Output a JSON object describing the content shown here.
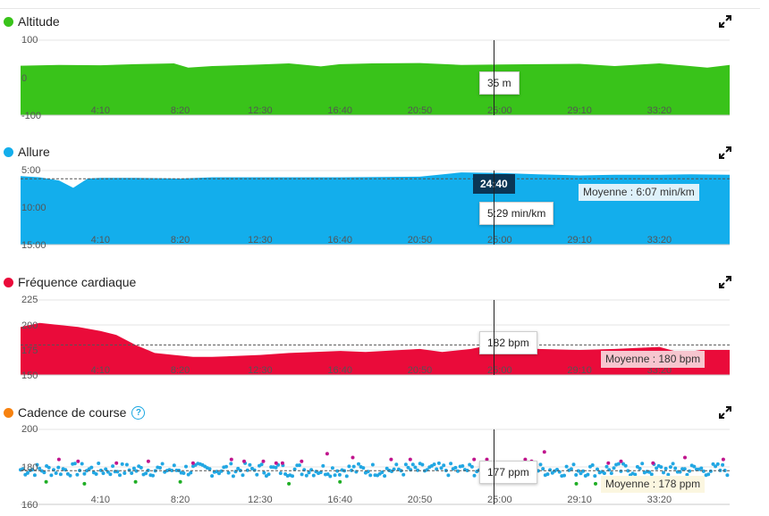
{
  "colors": {
    "altitude": "#39c31a",
    "pace": "#13aeec",
    "heart": "#ea0b3a",
    "cadence_dot": "#f7820f",
    "cad_blue": "#22a7e3",
    "cad_purple": "#c0158d",
    "cad_green": "#1fae25"
  },
  "icons": {
    "expand": "expand-arrows-icon",
    "help": "question-circle-icon"
  },
  "cursor": {
    "time_label": "24:40",
    "x_time_seconds": 1480
  },
  "panels": {
    "altitude": {
      "title": "Altitude",
      "readout": "35 m"
    },
    "pace": {
      "title": "Allure",
      "readout": "5:29 min/km",
      "average_label": "Moyenne : 6:07 min/km"
    },
    "heart": {
      "title": "Fréquence cardiaque",
      "readout": "182 bpm",
      "average_label": "Moyenne : 180 bpm"
    },
    "cadence": {
      "title": "Cadence de course",
      "help_glyph": "?",
      "readout": "177 ppm",
      "average_label": "Moyenne : 178 ppm"
    }
  },
  "chart_data": [
    {
      "type": "area",
      "title": "Altitude",
      "x_ticks": [
        "4:10",
        "8:20",
        "12:30",
        "16:40",
        "20:50",
        "25:00",
        "29:10",
        "33:20"
      ],
      "y_ticks": [
        "100",
        "0",
        "-100"
      ],
      "ylim": [
        -100,
        100
      ],
      "series": [
        {
          "x": [
            "0:00",
            "2:00",
            "4:10",
            "6:00",
            "8:00",
            "8:45",
            "10:00",
            "12:30",
            "14:00",
            "15:40",
            "16:40",
            "18:20",
            "20:50",
            "23:00",
            "25:00",
            "27:00",
            "29:10",
            "31:00",
            "33:20",
            "35:50",
            "37:00"
          ],
          "values": [
            32,
            34,
            33,
            36,
            38,
            27,
            31,
            35,
            38,
            30,
            36,
            38,
            39,
            34,
            35,
            36,
            37,
            31,
            38,
            27,
            34
          ]
        }
      ]
    },
    {
      "type": "area",
      "title": "Allure",
      "x_ticks": [
        "4:10",
        "8:20",
        "12:30",
        "16:40",
        "20:50",
        "25:00",
        "29:10",
        "33:20"
      ],
      "y_ticks": [
        "5:00",
        "10:00",
        "15:00"
      ],
      "ylim": [
        "15:00",
        "5:00"
      ],
      "average": "6:07",
      "series": [
        {
          "x": [
            "0:00",
            "1:00",
            "2:00",
            "2:45",
            "3:30",
            "4:10",
            "6:00",
            "8:20",
            "10:00",
            "12:30",
            "16:40",
            "20:50",
            "23:00",
            "25:00",
            "27:00",
            "29:10",
            "31:00",
            "33:20",
            "35:00",
            "37:00"
          ],
          "values": [
            "5:45",
            "5:55",
            "6:20",
            "7:20",
            "6:05",
            "6:00",
            "6:00",
            "6:05",
            "5:55",
            "5:55",
            "5:55",
            "5:50",
            "5:15",
            "5:20",
            "5:30",
            "5:40",
            "5:35",
            "5:35",
            "5:30",
            "5:35"
          ]
        }
      ]
    },
    {
      "type": "area",
      "title": "Fréquence cardiaque",
      "x_ticks": [
        "4:10",
        "8:20",
        "12:30",
        "16:40",
        "20:50",
        "25:00",
        "29:10",
        "33:20"
      ],
      "y_ticks": [
        "225",
        "200",
        "175",
        "150"
      ],
      "ylim": [
        150,
        225
      ],
      "average": 180,
      "series": [
        {
          "x": [
            "0:00",
            "1:00",
            "2:00",
            "3:00",
            "4:10",
            "5:00",
            "6:00",
            "7:00",
            "8:00",
            "9:00",
            "10:00",
            "12:30",
            "14:00",
            "16:40",
            "18:00",
            "20:50",
            "22:00",
            "23:30",
            "25:00",
            "26:00",
            "27:00",
            "29:10",
            "31:00",
            "33:20",
            "34:30",
            "35:30",
            "37:00"
          ],
          "values": [
            198,
            202,
            200,
            198,
            194,
            190,
            180,
            172,
            170,
            168,
            168,
            170,
            172,
            174,
            173,
            176,
            173,
            176,
            182,
            180,
            176,
            175,
            176,
            178,
            172,
            175,
            175
          ]
        }
      ]
    },
    {
      "type": "scatter",
      "title": "Cadence de course",
      "x_ticks": [
        "4:10",
        "8:20",
        "12:30",
        "16:40",
        "20:50",
        "25:00",
        "29:10",
        "33:20"
      ],
      "y_ticks": [
        "200",
        "180",
        "160"
      ],
      "ylim": [
        160,
        200
      ],
      "average": 178,
      "series": [
        {
          "x_range": [
            "0:00",
            "37:00"
          ],
          "typical_values": [
            175,
            182
          ],
          "outliers_high": [
            186,
            187,
            188
          ],
          "outliers_low": [
            170,
            171,
            172
          ]
        }
      ]
    }
  ]
}
